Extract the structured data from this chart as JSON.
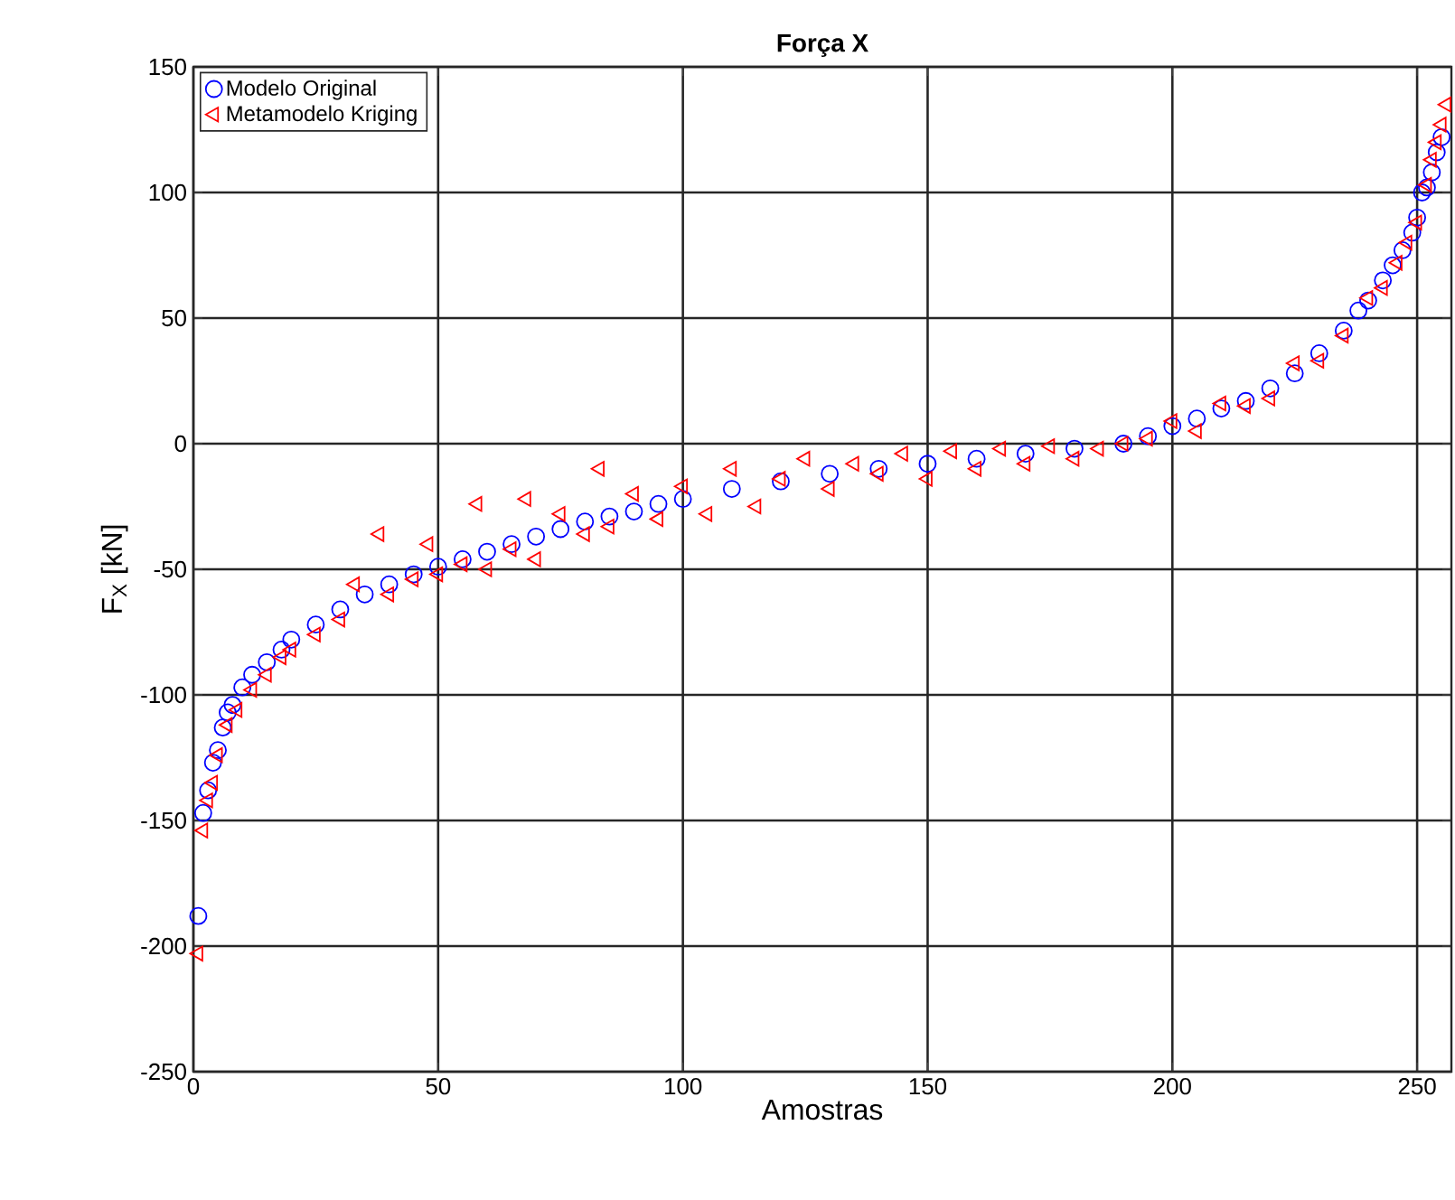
{
  "chart_data": {
    "type": "scatter",
    "title": "Força X",
    "xlabel": "Amostras",
    "ylabel": "F$_{X}$ [kN]",
    "xlim": [
      0,
      257
    ],
    "ylim": [
      -250,
      150
    ],
    "xticks": [
      0,
      50,
      100,
      150,
      200,
      250
    ],
    "yticks": [
      -250,
      -200,
      -150,
      -100,
      -50,
      0,
      50,
      100,
      150
    ],
    "grid": true,
    "legend": "top left",
    "series": [
      {
        "name": "Modelo Original",
        "color": "#0000ff",
        "marker": "circle",
        "x": [
          1,
          2,
          3,
          4,
          5,
          6,
          7,
          8,
          10,
          12,
          15,
          18,
          20,
          25,
          30,
          35,
          40,
          45,
          50,
          55,
          60,
          65,
          70,
          75,
          80,
          85,
          90,
          95,
          100,
          110,
          120,
          130,
          140,
          150,
          160,
          170,
          180,
          190,
          195,
          200,
          205,
          210,
          215,
          220,
          225,
          230,
          235,
          238,
          240,
          243,
          245,
          247,
          249,
          250,
          251,
          252,
          253,
          254,
          255
        ],
        "values": [
          -188,
          -147,
          -138,
          -127,
          -122,
          -113,
          -107,
          -104,
          -97,
          -92,
          -87,
          -82,
          -78,
          -72,
          -66,
          -60,
          -56,
          -52,
          -49,
          -46,
          -43,
          -40,
          -37,
          -34,
          -31,
          -29,
          -27,
          -24,
          -22,
          -18,
          -15,
          -12,
          -10,
          -8,
          -6,
          -4,
          -2,
          0,
          3,
          7,
          10,
          14,
          17,
          22,
          28,
          36,
          45,
          53,
          57,
          65,
          71,
          77,
          84,
          90,
          100,
          102,
          108,
          116,
          122
        ]
      },
      {
        "name": "Metamodelo Kriging",
        "color": "#ff0000",
        "marker": "triangle",
        "x": [
          1,
          2,
          3,
          4,
          5,
          7,
          9,
          12,
          15,
          18,
          20,
          25,
          30,
          33,
          38,
          40,
          45,
          48,
          50,
          55,
          58,
          60,
          65,
          68,
          70,
          75,
          80,
          83,
          85,
          90,
          95,
          100,
          105,
          110,
          115,
          120,
          125,
          130,
          135,
          140,
          145,
          150,
          155,
          160,
          165,
          170,
          175,
          180,
          185,
          190,
          195,
          200,
          205,
          210,
          215,
          220,
          225,
          230,
          235,
          240,
          243,
          246,
          248,
          250,
          252,
          253,
          254,
          255,
          256
        ],
        "values": [
          -203,
          -154,
          -142,
          -135,
          -124,
          -112,
          -106,
          -98,
          -92,
          -85,
          -82,
          -76,
          -70,
          -56,
          -36,
          -60,
          -54,
          -40,
          -52,
          -48,
          -24,
          -50,
          -42,
          -22,
          -46,
          -28,
          -36,
          -10,
          -33,
          -20,
          -30,
          -17,
          -28,
          -10,
          -25,
          -14,
          -6,
          -18,
          -8,
          -12,
          -4,
          -14,
          -3,
          -10,
          -2,
          -8,
          -1,
          -6,
          -2,
          0,
          2,
          9,
          5,
          16,
          15,
          18,
          32,
          33,
          43,
          58,
          62,
          72,
          80,
          88,
          103,
          113,
          120,
          127,
          135
        ]
      }
    ]
  }
}
